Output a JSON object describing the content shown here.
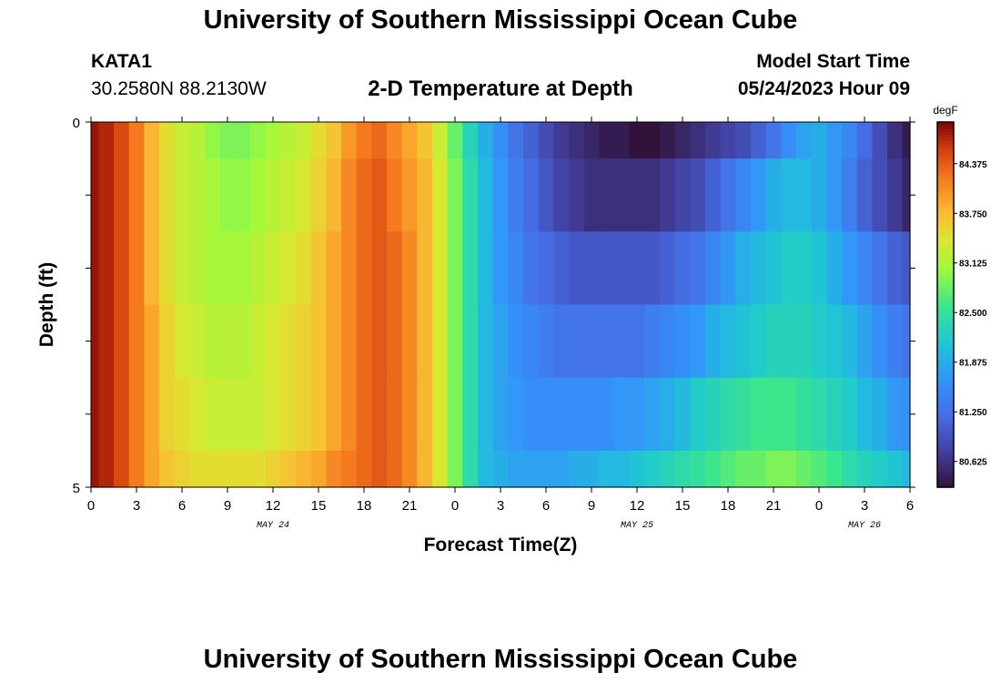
{
  "header": {
    "title": "University of Southern Mississippi Ocean Cube",
    "station": "KATA1",
    "coords": "30.2580N  88.2130W",
    "subtitle": "2-D Temperature at Depth",
    "model_start_label": "Model Start Time",
    "model_start_value": "05/24/2023 Hour 09"
  },
  "footer": {
    "title": "University of Southern Mississippi Ocean Cube"
  },
  "chart_data": {
    "type": "heatmap",
    "title": "2-D Temperature at Depth",
    "xlabel": "Forecast Time(Z)",
    "ylabel": "Depth (ft)",
    "xlim": [
      0,
      54
    ],
    "ylim": [
      0,
      5
    ],
    "x_ticks": [
      0,
      3,
      6,
      9,
      12,
      15,
      18,
      21,
      24,
      27,
      30,
      33,
      36,
      39,
      42,
      45,
      48,
      51,
      54
    ],
    "x_tick_labels": [
      "0",
      "3",
      "6",
      "9",
      "12",
      "15",
      "18",
      "21",
      "0",
      "3",
      "6",
      "9",
      "12",
      "15",
      "18",
      "21",
      "0",
      "3",
      "6"
    ],
    "y_ticks": [
      0,
      5
    ],
    "y_tick_labels": [
      "0",
      "5"
    ],
    "date_labels": [
      {
        "text": "MAY 24",
        "x": 12
      },
      {
        "text": "MAY 25",
        "x": 36
      },
      {
        "text": "MAY 26",
        "x": 51
      }
    ],
    "colorbar": {
      "unit": "degF",
      "min": 80.3,
      "max": 84.9,
      "ticks": [
        84.375,
        83.75,
        83.125,
        82.5,
        81.875,
        81.25,
        80.625
      ],
      "tick_labels": [
        "84.375",
        "83.750",
        "83.125",
        "82.500",
        "81.875",
        "81.250",
        "80.625"
      ]
    },
    "x": [
      0,
      1,
      2,
      3,
      4,
      5,
      6,
      7,
      8,
      9,
      10,
      11,
      12,
      13,
      14,
      15,
      16,
      17,
      18,
      19,
      20,
      21,
      22,
      23,
      24,
      25,
      26,
      27,
      28,
      29,
      30,
      31,
      32,
      33,
      34,
      35,
      36,
      37,
      38,
      39,
      40,
      41,
      42,
      43,
      44,
      45,
      46,
      47,
      48,
      49,
      50,
      51,
      52,
      53,
      54
    ],
    "depth_bins": [
      [
        0,
        0.5
      ],
      [
        0.5,
        1.5
      ],
      [
        1.5,
        2.5
      ],
      [
        2.5,
        3.5
      ],
      [
        3.5,
        4.5
      ],
      [
        4.5,
        5
      ]
    ],
    "values": [
      [
        84.8,
        84.7,
        84.5,
        84.2,
        83.8,
        83.5,
        83.3,
        83.2,
        83.0,
        82.9,
        82.9,
        83.0,
        83.1,
        83.2,
        83.3,
        83.5,
        83.7,
        84.0,
        84.2,
        84.3,
        84.1,
        83.9,
        83.7,
        83.3,
        82.8,
        82.3,
        81.9,
        81.6,
        81.3,
        81.1,
        80.9,
        80.7,
        80.6,
        80.5,
        80.4,
        80.4,
        80.3,
        80.3,
        80.4,
        80.5,
        80.6,
        80.7,
        80.8,
        80.9,
        81.1,
        81.3,
        81.6,
        81.8,
        81.9,
        81.7,
        81.5,
        81.2,
        80.9,
        80.6,
        80.4
      ],
      [
        84.8,
        84.7,
        84.5,
        84.2,
        83.8,
        83.5,
        83.3,
        83.2,
        83.1,
        83.0,
        83.0,
        83.1,
        83.2,
        83.3,
        83.4,
        83.6,
        83.8,
        84.1,
        84.3,
        84.4,
        84.2,
        84.0,
        83.8,
        83.4,
        82.9,
        82.4,
        82.0,
        81.7,
        81.4,
        81.2,
        81.0,
        80.8,
        80.7,
        80.6,
        80.6,
        80.6,
        80.6,
        80.6,
        80.7,
        80.8,
        80.9,
        81.1,
        81.3,
        81.5,
        81.7,
        81.9,
        82.0,
        82.0,
        81.9,
        81.7,
        81.4,
        81.1,
        80.9,
        80.7,
        80.5
      ],
      [
        84.8,
        84.7,
        84.5,
        84.2,
        83.8,
        83.5,
        83.3,
        83.2,
        83.1,
        83.1,
        83.1,
        83.2,
        83.3,
        83.4,
        83.5,
        83.7,
        83.9,
        84.1,
        84.3,
        84.4,
        84.3,
        84.1,
        83.8,
        83.4,
        82.9,
        82.4,
        82.0,
        81.7,
        81.5,
        81.3,
        81.2,
        81.1,
        81.0,
        81.0,
        81.0,
        81.0,
        81.0,
        81.0,
        81.1,
        81.2,
        81.3,
        81.5,
        81.7,
        81.9,
        82.0,
        82.1,
        82.2,
        82.2,
        82.1,
        81.9,
        81.7,
        81.5,
        81.3,
        81.1,
        81.0
      ],
      [
        84.8,
        84.7,
        84.5,
        84.2,
        83.9,
        83.6,
        83.4,
        83.3,
        83.2,
        83.2,
        83.2,
        83.3,
        83.4,
        83.5,
        83.6,
        83.7,
        83.9,
        84.1,
        84.3,
        84.4,
        84.3,
        84.1,
        83.8,
        83.4,
        82.9,
        82.4,
        82.0,
        81.8,
        81.6,
        81.5,
        81.4,
        81.3,
        81.3,
        81.3,
        81.3,
        81.3,
        81.3,
        81.4,
        81.5,
        81.6,
        81.7,
        81.9,
        82.0,
        82.1,
        82.2,
        82.3,
        82.3,
        82.3,
        82.2,
        82.1,
        82.0,
        81.8,
        81.6,
        81.4,
        81.3
      ],
      [
        84.8,
        84.7,
        84.5,
        84.2,
        83.9,
        83.6,
        83.5,
        83.4,
        83.3,
        83.3,
        83.3,
        83.3,
        83.4,
        83.5,
        83.6,
        83.7,
        83.9,
        84.1,
        84.3,
        84.4,
        84.3,
        84.1,
        83.8,
        83.4,
        82.9,
        82.4,
        82.0,
        81.8,
        81.7,
        81.6,
        81.6,
        81.6,
        81.6,
        81.6,
        81.6,
        81.7,
        81.7,
        81.8,
        81.9,
        82.0,
        82.2,
        82.3,
        82.4,
        82.5,
        82.6,
        82.6,
        82.6,
        82.5,
        82.4,
        82.3,
        82.2,
        82.0,
        81.9,
        81.7,
        81.6
      ],
      [
        84.8,
        84.7,
        84.5,
        84.2,
        83.9,
        83.7,
        83.6,
        83.5,
        83.5,
        83.5,
        83.5,
        83.5,
        83.6,
        83.7,
        83.8,
        83.9,
        84.1,
        84.2,
        84.3,
        84.4,
        84.3,
        84.1,
        83.8,
        83.4,
        82.9,
        82.4,
        82.0,
        81.9,
        81.8,
        81.8,
        81.8,
        81.8,
        81.9,
        81.9,
        82.0,
        82.0,
        82.1,
        82.2,
        82.3,
        82.4,
        82.5,
        82.6,
        82.7,
        82.8,
        82.8,
        82.9,
        82.9,
        82.8,
        82.7,
        82.6,
        82.4,
        82.3,
        82.2,
        82.1,
        82.0
      ]
    ]
  }
}
